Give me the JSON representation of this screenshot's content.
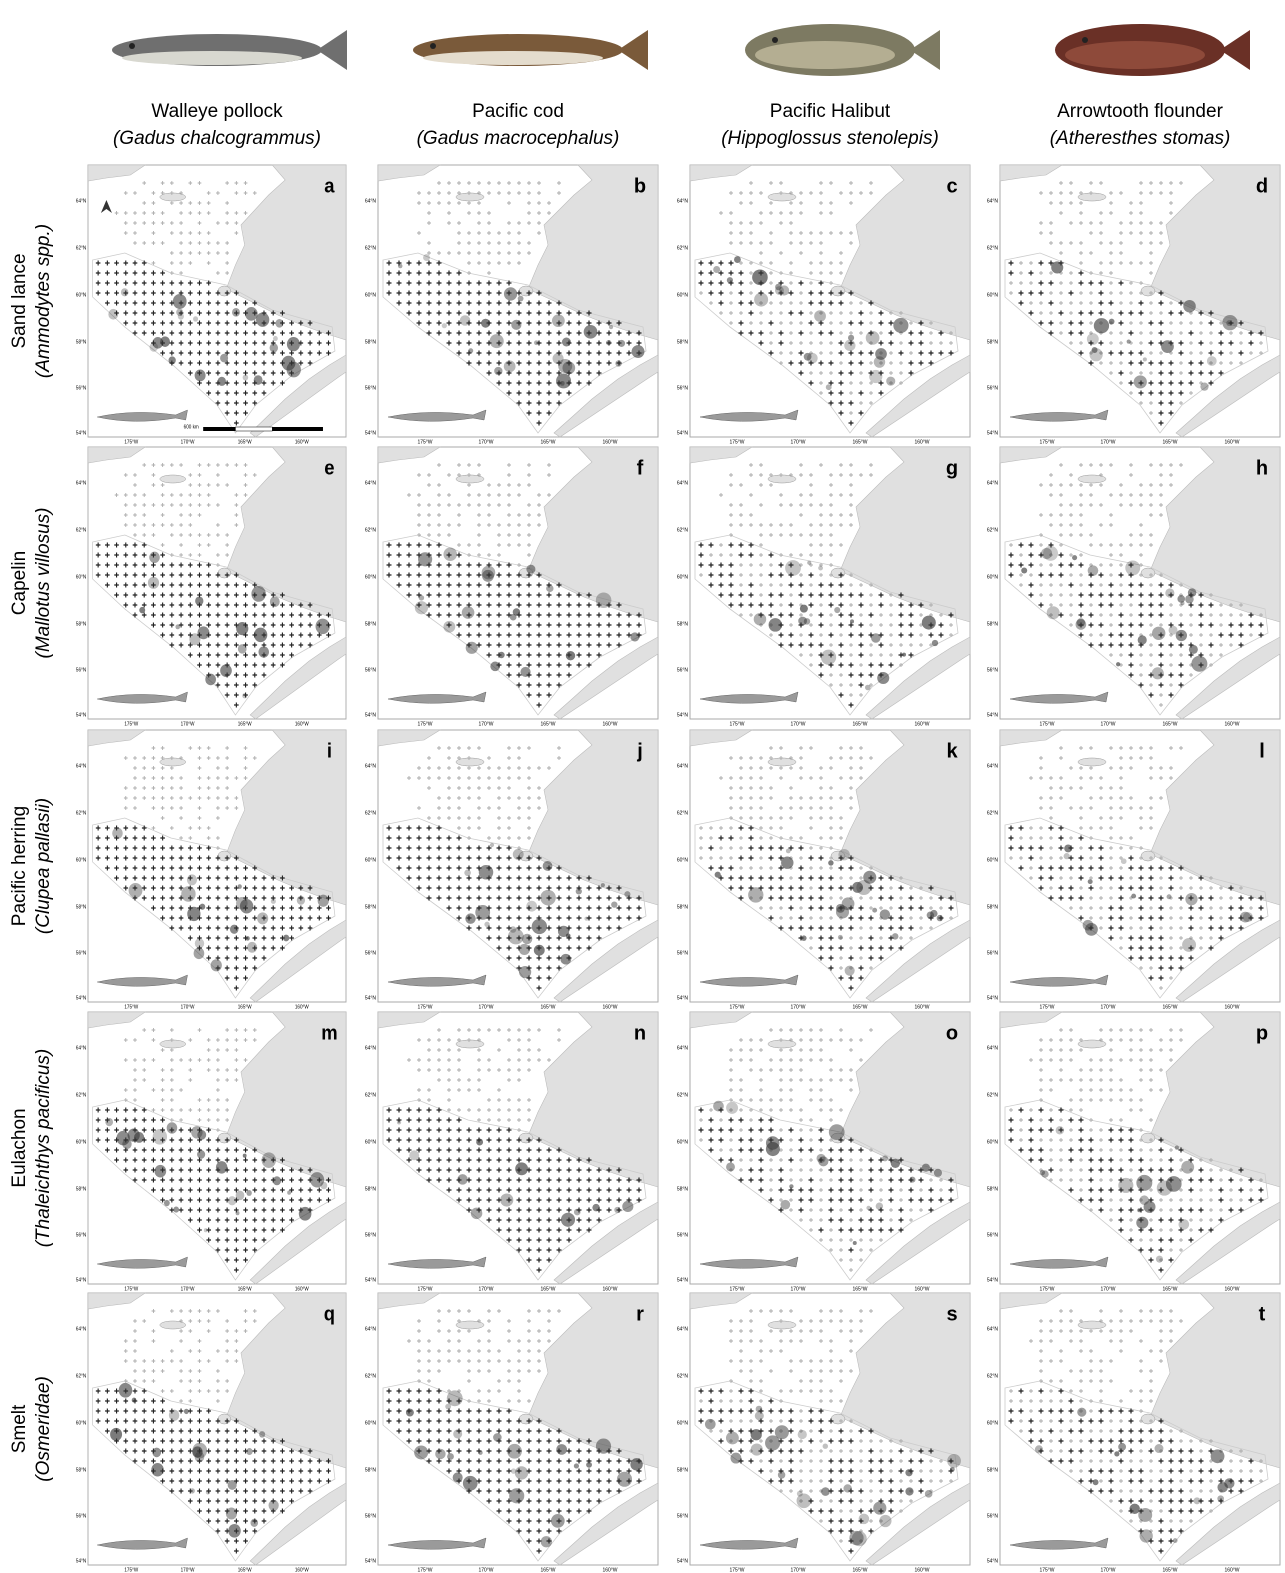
{
  "columns": [
    {
      "common": "Walleye pollock",
      "scientific": "(Gadus chalcogrammus)"
    },
    {
      "common": "Pacific cod",
      "scientific": "(Gadus macrocephalus)"
    },
    {
      "common": "Pacific Halibut",
      "scientific": "(Hippoglossus stenolepis)"
    },
    {
      "common": "Arrowtooth flounder",
      "scientific": "(Atheresthes stomas)"
    }
  ],
  "rows": [
    {
      "common": "Sand lance",
      "scientific": "(Ammodytes spp.)"
    },
    {
      "common": "Capelin",
      "scientific": "(Mallotus villosus)"
    },
    {
      "common": "Pacific herring",
      "scientific": "(Clupea pallasii)"
    },
    {
      "common": "Eulachon",
      "scientific": "(Thaleichthys pacificus)"
    },
    {
      "common": "Smelt",
      "scientific": "(Osmeridae)"
    }
  ],
  "panels": [
    "a",
    "b",
    "c",
    "d",
    "e",
    "f",
    "g",
    "h",
    "i",
    "j",
    "k",
    "l",
    "m",
    "n",
    "o",
    "p",
    "q",
    "r",
    "s",
    "t"
  ],
  "lat_ticks": [
    "64°N",
    "62°N",
    "60°N",
    "58°N",
    "56°N",
    "54°N"
  ],
  "lon_ticks": [
    "175°W",
    "170°W",
    "165°W",
    "160°W"
  ],
  "scale_bar": "600 km"
}
